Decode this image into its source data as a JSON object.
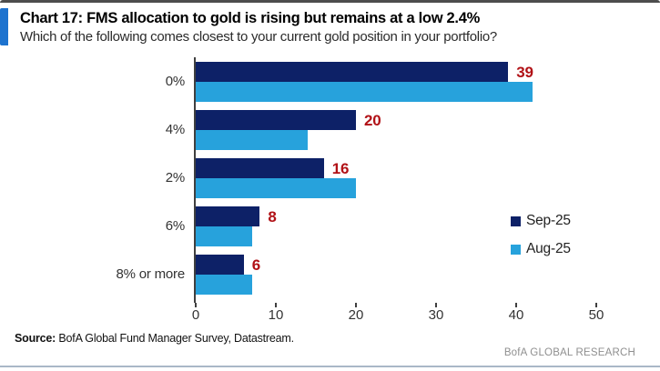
{
  "header": {
    "title": "Chart 17: FMS allocation to gold is rising but remains at a low 2.4%",
    "subtitle": "Which of the following comes closest to your current gold position in your portfolio?"
  },
  "chart_data": {
    "type": "bar",
    "orientation": "horizontal",
    "title": "Chart 17: FMS allocation to gold is rising but remains at a low 2.4%",
    "categories": [
      "0%",
      "4%",
      "2%",
      "6%",
      "8% or more"
    ],
    "series": [
      {
        "name": "Sep-25",
        "color": "#0d2167",
        "values": [
          39,
          20,
          16,
          8,
          6
        ]
      },
      {
        "name": "Aug-25",
        "color": "#27a2dc",
        "values": [
          42,
          14,
          20,
          7,
          7
        ]
      }
    ],
    "data_labels": {
      "series": "Sep-25",
      "values": [
        "39",
        "20",
        "16",
        "8",
        "6"
      ],
      "color": "#b11116"
    },
    "xlim": [
      0,
      50
    ],
    "xticks": [
      "0",
      "10",
      "20",
      "30",
      "40",
      "50"
    ],
    "legend": {
      "position": "center-right",
      "entries": [
        "Sep-25",
        "Aug-25"
      ]
    },
    "grid": false
  },
  "footer": {
    "source_label": "Source:",
    "source_text": "BofA Global Fund Manager Survey, Datastream.",
    "brand": "BofA GLOBAL RESEARCH"
  },
  "colors": {
    "sep25": "#0d2167",
    "aug25": "#27a2dc",
    "value_label": "#b11116",
    "accent_bar": "#1d73cf",
    "axis": "#3f3f3f",
    "bottom_rule": "#a9b7c7"
  }
}
